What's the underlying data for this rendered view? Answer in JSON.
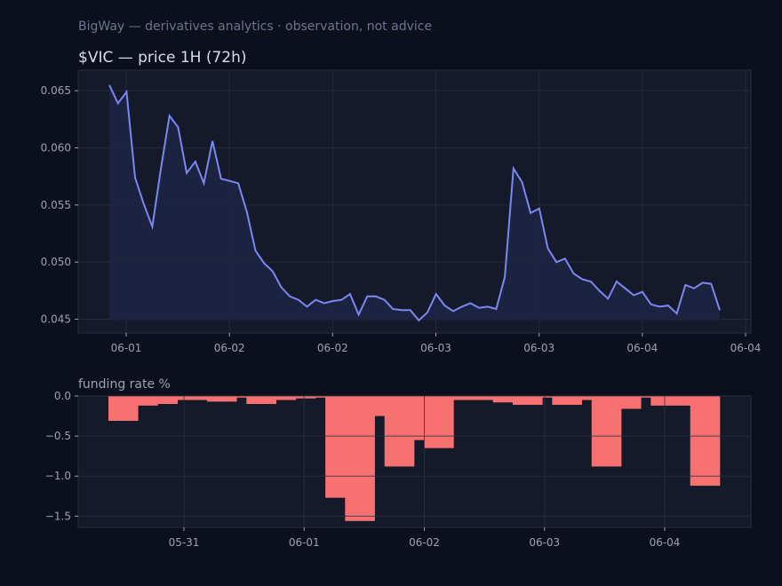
{
  "suptitle": "BigWay — derivatives analytics · observation, not advice",
  "colors": {
    "background": "#0b101c",
    "panel": "#141a29",
    "price_line": "#7d87f0",
    "funding_bar": "#f87171",
    "tick_text": "#9aa3b5"
  },
  "chart_data": [
    {
      "type": "line",
      "title": "$VIC — price 1H (72h)",
      "x_tick_labels": [
        "06-01",
        "06-02",
        "06-02",
        "06-03",
        "06-03",
        "06-04",
        "06-04"
      ],
      "y_tick_labels": [
        "0.065",
        "0.060",
        "0.055",
        "0.050",
        "0.045"
      ],
      "yticks": [
        0.065,
        0.06,
        0.055,
        0.05,
        0.045
      ],
      "ylim": [
        0.0438,
        0.0668
      ],
      "grid": true,
      "series": [
        {
          "values": [
            0.0655,
            0.0639,
            0.0649,
            0.0574,
            0.0551,
            0.0531,
            0.0582,
            0.0628,
            0.0618,
            0.0578,
            0.0588,
            0.0569,
            0.0606,
            0.0573,
            0.0571,
            0.0569,
            0.0544,
            0.051,
            0.0499,
            0.0492,
            0.0478,
            0.047,
            0.0467,
            0.0461,
            0.0467,
            0.0464,
            0.0466,
            0.0467,
            0.0472,
            0.0454,
            0.047,
            0.047,
            0.0467,
            0.0459,
            0.0458,
            0.0458,
            0.0449,
            0.0456,
            0.0472,
            0.0462,
            0.0457,
            0.0461,
            0.0464,
            0.046,
            0.0461,
            0.0459,
            0.0487,
            0.0582,
            0.057,
            0.0543,
            0.0547,
            0.0512,
            0.05,
            0.0503,
            0.049,
            0.0485,
            0.0483,
            0.0475,
            0.0468,
            0.0483,
            0.0477,
            0.0471,
            0.0474,
            0.0463,
            0.0461,
            0.0462,
            0.0455,
            0.048,
            0.0477,
            0.0482,
            0.0481,
            0.0458
          ]
        }
      ]
    },
    {
      "type": "bar",
      "title": "funding rate %",
      "x_tick_labels": [
        "05-31",
        "06-01",
        "06-02",
        "06-03",
        "06-04"
      ],
      "y_tick_labels": [
        "0.0",
        "−0.5",
        "−1.0",
        "−1.5"
      ],
      "yticks": [
        0.0,
        -0.5,
        -1.0,
        -1.5
      ],
      "ylim": [
        -1.64,
        0.0
      ],
      "grid": true,
      "series": [
        {
          "values": [
            -0.31,
            -0.31,
            -0.31,
            -0.12,
            -0.12,
            -0.1,
            -0.1,
            -0.05,
            -0.05,
            -0.05,
            -0.07,
            -0.07,
            -0.07,
            -0.02,
            -0.1,
            -0.1,
            -0.1,
            -0.05,
            -0.05,
            -0.03,
            -0.03,
            -0.02,
            -1.27,
            -1.27,
            -1.56,
            -1.56,
            -1.56,
            -0.25,
            -0.88,
            -0.88,
            -0.88,
            -0.55,
            -0.65,
            -0.65,
            -0.65,
            -0.05,
            -0.05,
            -0.05,
            -0.05,
            -0.08,
            -0.08,
            -0.11,
            -0.11,
            -0.11,
            -0.02,
            -0.11,
            -0.11,
            -0.11,
            -0.05,
            -0.88,
            -0.88,
            -0.88,
            -0.16,
            -0.16,
            -0.02,
            -0.12,
            -0.12,
            -0.12,
            -0.12,
            -1.12,
            -1.12,
            -1.12
          ]
        }
      ]
    }
  ]
}
